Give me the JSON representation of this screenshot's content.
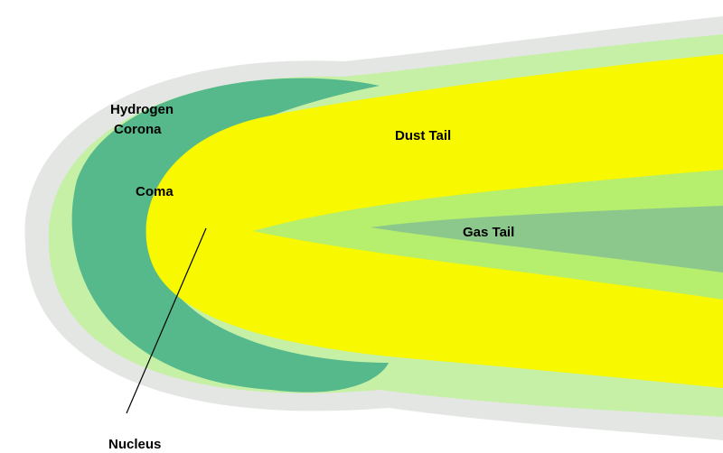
{
  "labels": [
    {
      "lines": [
        "Hydrogen",
        "Corona"
      ]
    },
    {
      "lines": [
        "Coma"
      ]
    },
    {
      "lines": [
        "Dust Tail"
      ]
    },
    {
      "lines": [
        "Gas Tail"
      ]
    },
    {
      "lines": [
        "Nucleus"
      ]
    }
  ]
}
